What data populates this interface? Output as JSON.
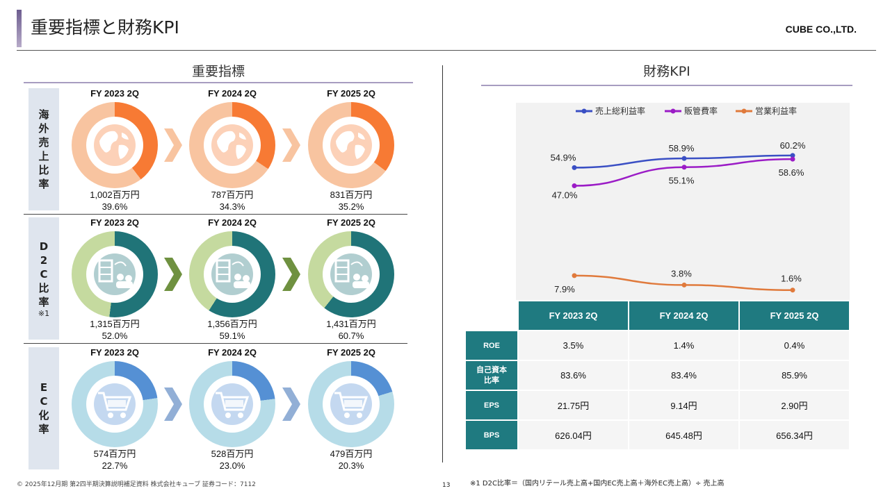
{
  "header": {
    "title": "重要指標と財務KPI",
    "company": "CUBE CO.,LTD."
  },
  "left": {
    "heading": "重要指標",
    "years": [
      "FY 2023 2Q",
      "FY 2024 2Q",
      "FY 2025 2Q"
    ],
    "rows": [
      {
        "label": "海外売上比率",
        "label_chars": [
          "海",
          "外",
          "売",
          "上",
          "比",
          "率"
        ],
        "note": "",
        "colors": {
          "base": "#f8c4a0",
          "accent": "#f77a34",
          "arrow": "#f8c4a0",
          "icon": "globe-icon"
        },
        "items": [
          {
            "amount": "1,002百万円",
            "pct": "39.6%",
            "ratio": 0.396
          },
          {
            "amount": "787百万円",
            "pct": "34.3%",
            "ratio": 0.343
          },
          {
            "amount": "831百万円",
            "pct": "35.2%",
            "ratio": 0.352
          }
        ]
      },
      {
        "label": "D2C比率",
        "label_chars": [
          "D",
          "2",
          "C",
          "比",
          "率"
        ],
        "note": "※1",
        "colors": {
          "base": "#c5da9f",
          "accent": "#207478",
          "arrow": "#6f9140",
          "icon": "store-to-family-icon"
        },
        "items": [
          {
            "amount": "1,315百万円",
            "pct": "52.0%",
            "ratio": 0.52
          },
          {
            "amount": "1,356百万円",
            "pct": "59.1%",
            "ratio": 0.591
          },
          {
            "amount": "1,431百万円",
            "pct": "60.7%",
            "ratio": 0.607
          }
        ]
      },
      {
        "label": "EC化率",
        "label_chars": [
          "E",
          "C",
          "化",
          "率"
        ],
        "note": "",
        "colors": {
          "base": "#b6dce8",
          "accent": "#5590d4",
          "arrow": "#92afd6",
          "icon": "shopping-cart-icon"
        },
        "items": [
          {
            "amount": "574百万円",
            "pct": "22.7%",
            "ratio": 0.227
          },
          {
            "amount": "528百万円",
            "pct": "23.0%",
            "ratio": 0.23
          },
          {
            "amount": "479百万円",
            "pct": "20.3%",
            "ratio": 0.203
          }
        ]
      }
    ]
  },
  "right": {
    "heading": "財務KPI",
    "table": {
      "headers": [
        "FY 2023 2Q",
        "FY 2024 2Q",
        "FY 2025 2Q"
      ],
      "rows": [
        {
          "label": "ROE",
          "values": [
            "3.5%",
            "1.4%",
            "0.4%"
          ]
        },
        {
          "label": "自己資本比率",
          "values": [
            "83.6%",
            "83.4%",
            "85.9%"
          ]
        },
        {
          "label": "EPS",
          "values": [
            "21.75円",
            "9.14円",
            "2.90円"
          ]
        },
        {
          "label": "BPS",
          "values": [
            "626.04円",
            "645.48円",
            "656.34円"
          ]
        }
      ]
    }
  },
  "chart_data": {
    "type": "line",
    "x": [
      "FY 2023 2Q",
      "FY 2024 2Q",
      "FY 2025 2Q"
    ],
    "legend_position": "top",
    "series": [
      {
        "name": "売上総利益率",
        "color": "#3a4fc4",
        "values": [
          54.9,
          58.9,
          60.2
        ],
        "labels": [
          "54.9%",
          "58.9%",
          "60.2%"
        ]
      },
      {
        "name": "販管費率",
        "color": "#9b1cc6",
        "values": [
          47.0,
          55.1,
          58.6
        ],
        "labels": [
          "47.0%",
          "55.1%",
          "58.6%"
        ]
      },
      {
        "name": "営業利益率",
        "color": "#e07a3c",
        "values": [
          7.9,
          3.8,
          1.6
        ],
        "labels": [
          "7.9%",
          "3.8%",
          "1.6%"
        ]
      }
    ]
  },
  "footer": {
    "copyright": "© 2025年12月期 第2四半期決算説明補足資料 株式会社キューブ 証券コード：7112",
    "page": "13",
    "note": "※1 D2C比率＝（国内リテール売上高+国内EC売上高＋海外EC売上高）÷ 売上高"
  }
}
